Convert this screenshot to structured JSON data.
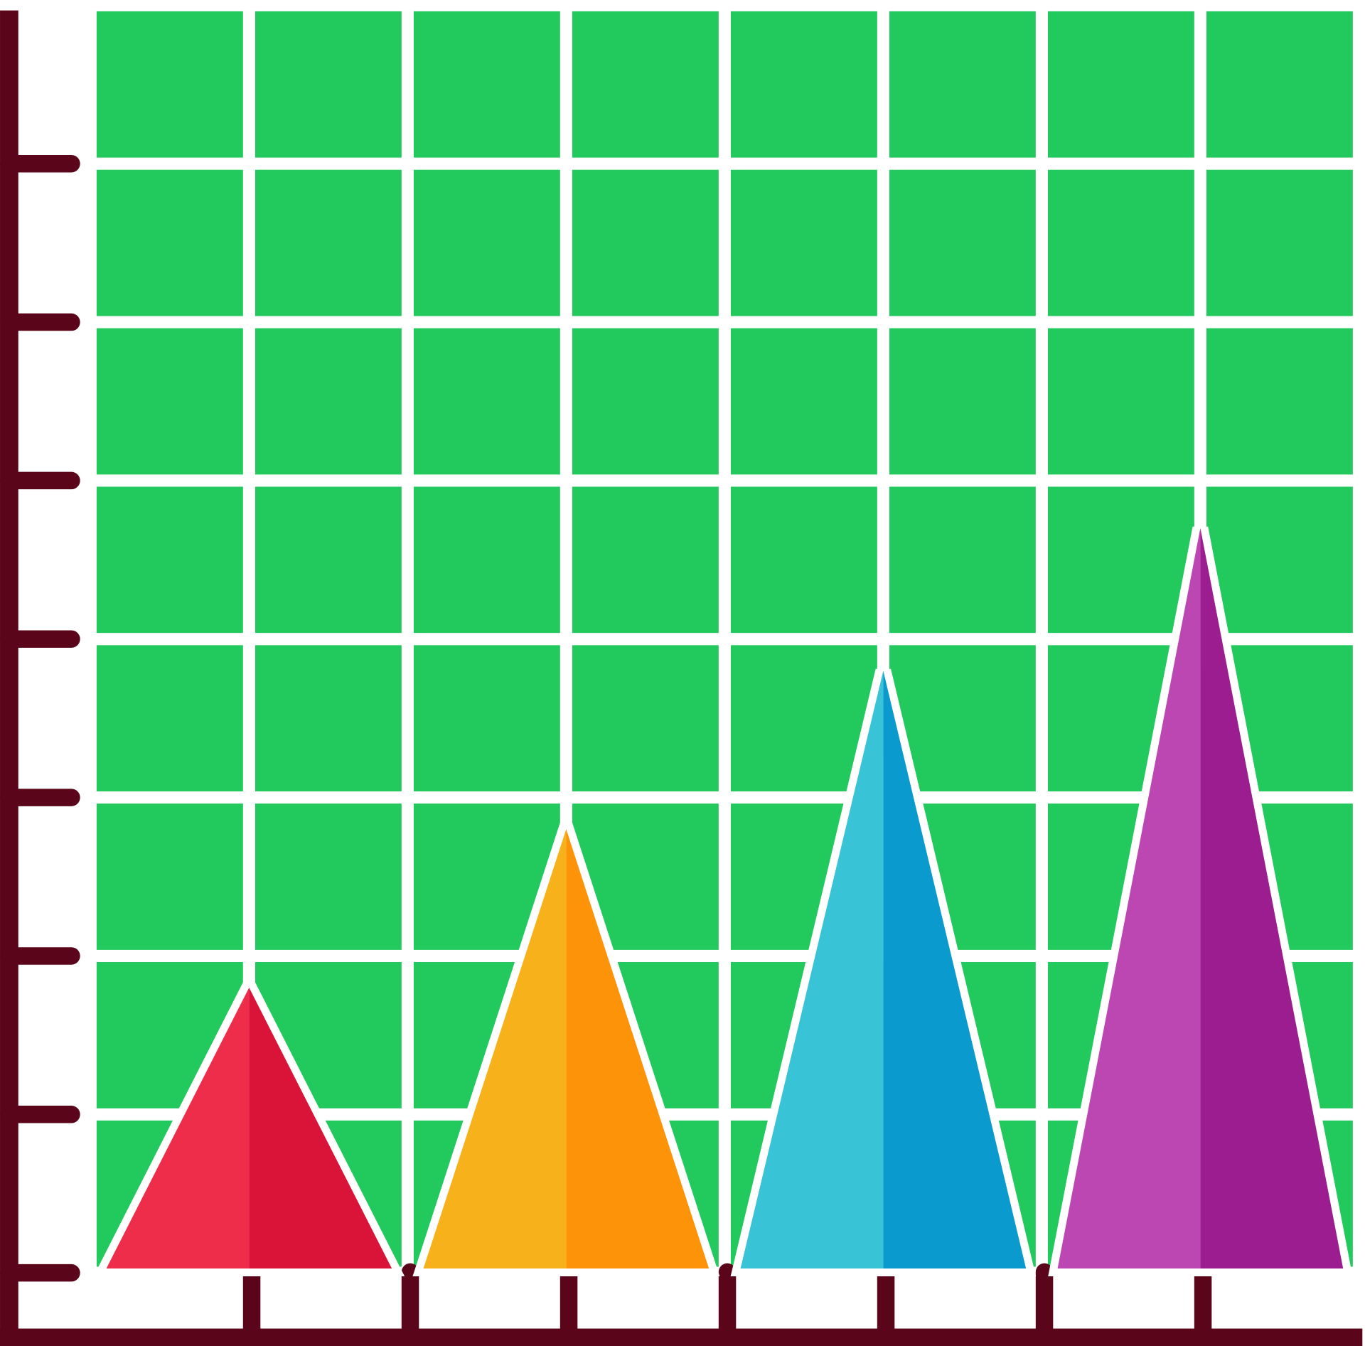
{
  "chart_data": {
    "type": "bar",
    "categories": [
      null,
      null,
      null,
      null
    ],
    "values": [
      1.8,
      2.8,
      3.8,
      4.7
    ],
    "colors": [
      [
        "#ee2d4a",
        "#da1339"
      ],
      [
        "#f7b21b",
        "#fd9308"
      ],
      [
        "#38c3d6",
        "#0b9acd"
      ],
      [
        "#bc47b3",
        "#9b1d8f"
      ]
    ],
    "background": "#22c95c",
    "axis_color": "#5a0519",
    "ylim": [
      0,
      8
    ],
    "yticks": [
      0,
      1,
      2,
      3,
      4,
      5,
      6,
      7
    ],
    "grid": true
  }
}
